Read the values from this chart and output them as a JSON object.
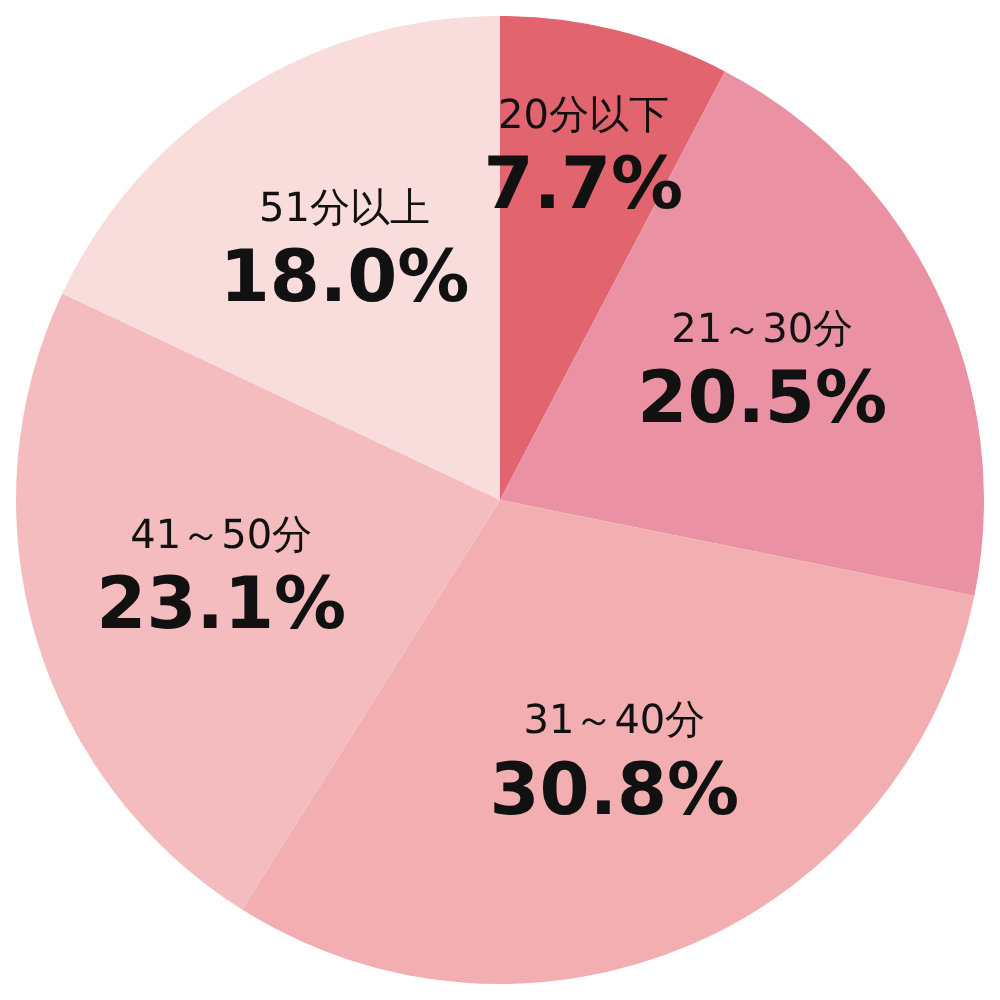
{
  "chart_data": {
    "type": "pie",
    "categories": [
      "20分以下",
      "21～30分",
      "31～40分",
      "41～50分",
      "51分以上"
    ],
    "values": [
      7.7,
      20.5,
      30.8,
      23.1,
      18.0
    ],
    "value_labels": [
      "7.7%",
      "20.5%",
      "30.8%",
      "23.1%",
      "18.0%"
    ],
    "colors": [
      "#e2646e",
      "#ea92a4",
      "#f2aeb0",
      "#f4bcbe",
      "#f9dcdc"
    ],
    "legend": false
  }
}
